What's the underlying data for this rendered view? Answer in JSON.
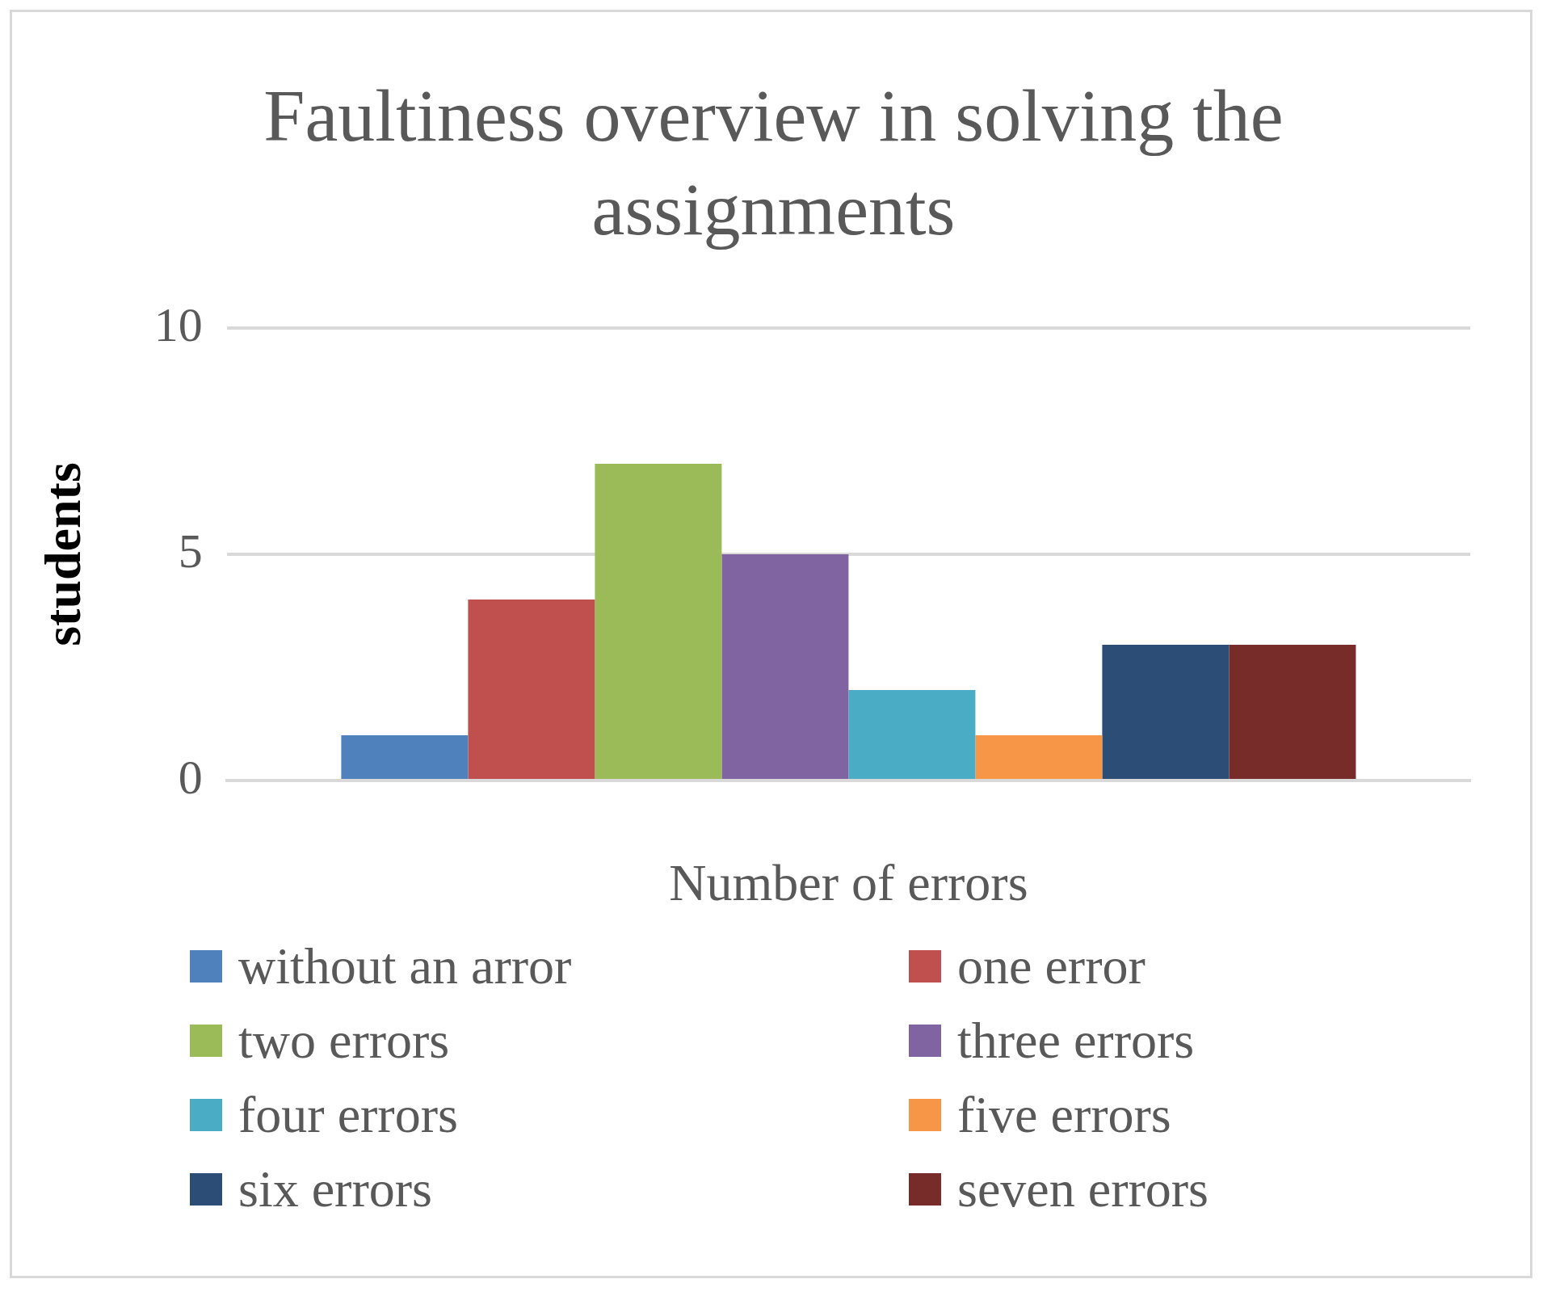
{
  "chart_data": {
    "type": "bar",
    "title": "Faultiness overview in solving the assignments",
    "xlabel": "Number of errors",
    "ylabel": "students",
    "categories": [
      null
    ],
    "series": [
      {
        "name": "without an arror",
        "color": "#4f81bd",
        "values": [
          1
        ]
      },
      {
        "name": "one error",
        "color": "#c0504d",
        "values": [
          4
        ]
      },
      {
        "name": "two errors",
        "color": "#9bbb59",
        "values": [
          7
        ]
      },
      {
        "name": "three errors",
        "color": "#8064a2",
        "values": [
          5
        ]
      },
      {
        "name": "four errors",
        "color": "#4bacc6",
        "values": [
          2
        ]
      },
      {
        "name": "five errors",
        "color": "#f79646",
        "values": [
          1
        ]
      },
      {
        "name": "six errors",
        "color": "#2c4d75",
        "values": [
          3
        ]
      },
      {
        "name": "seven errors",
        "color": "#772c2a",
        "values": [
          3
        ]
      }
    ],
    "ylim": [
      0,
      10
    ],
    "yticks": [
      0,
      5,
      10
    ],
    "grid": "y",
    "legend": "bottom"
  }
}
